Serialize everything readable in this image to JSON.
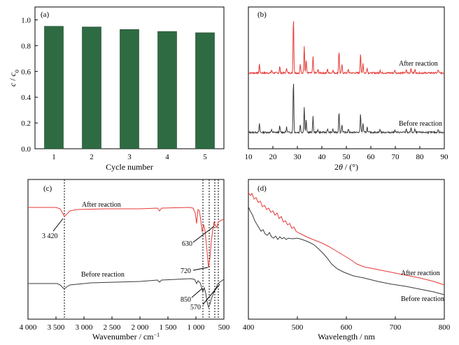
{
  "colors": {
    "after": "#e53935",
    "before": "#3a3a3a",
    "bar": "#2e6b42"
  },
  "chart_data": [
    {
      "panel": "(a)",
      "type": "bar",
      "categories": [
        "1",
        "2",
        "3",
        "4",
        "5"
      ],
      "values": [
        0.95,
        0.945,
        0.925,
        0.91,
        0.9
      ],
      "xlabel": "Cycle number",
      "ylabel_main": "c",
      "ylabel_sep": " / ",
      "ylabel_sub_base": "c",
      "ylabel_sub": "0",
      "ylim": [
        0,
        1.1
      ],
      "yticks": [
        0.0,
        0.2,
        0.4,
        0.6,
        0.8,
        1.0
      ]
    },
    {
      "panel": "(b)",
      "type": "line",
      "xlabel_pre": "2",
      "xlabel_theta": "θ",
      "xlabel_post": " / (°)",
      "xlim": [
        10,
        90
      ],
      "xticks": [
        10,
        20,
        30,
        40,
        50,
        60,
        70,
        80,
        90
      ],
      "peaks": [
        [
          14.5,
          0.16
        ],
        [
          19.5,
          0.05
        ],
        [
          22.8,
          0.12
        ],
        [
          25.6,
          0.1
        ],
        [
          28.4,
          1.0
        ],
        [
          31.2,
          0.16
        ],
        [
          32.8,
          0.5
        ],
        [
          33.6,
          0.24
        ],
        [
          36.4,
          0.3
        ],
        [
          38.4,
          0.06
        ],
        [
          42.3,
          0.07
        ],
        [
          44.5,
          0.06
        ],
        [
          47.0,
          0.4
        ],
        [
          48.2,
          0.15
        ],
        [
          50.8,
          0.07
        ],
        [
          55.8,
          0.36
        ],
        [
          56.8,
          0.18
        ],
        [
          58.5,
          0.1
        ],
        [
          63.8,
          0.06
        ],
        [
          69.8,
          0.05
        ],
        [
          74.5,
          0.06
        ],
        [
          76.4,
          0.09
        ],
        [
          78.0,
          0.06
        ],
        [
          87.5,
          0.06
        ]
      ],
      "series": [
        {
          "name": "After reaction",
          "color": "#e53935"
        },
        {
          "name": "Before reaction",
          "color": "#3a3a3a"
        }
      ]
    },
    {
      "panel": "(c)",
      "type": "line",
      "xlabel": "Wavenumber / cm",
      "xlabel_sup": "−1",
      "xlim": [
        4000,
        500
      ],
      "xticks": [
        4000,
        3500,
        3000,
        2500,
        2000,
        1500,
        1000,
        500
      ],
      "xtick_labels": [
        "4 000",
        "3 500",
        "3 000",
        "2 500",
        "2 000",
        "1 500",
        "1 000",
        "500"
      ],
      "annotations": [
        "3 420",
        "630",
        "720",
        "850",
        "570"
      ],
      "series": [
        {
          "name": "After reaction",
          "color": "#e53935"
        },
        {
          "name": "Before reaction",
          "color": "#3a3a3a"
        }
      ]
    },
    {
      "panel": "(d)",
      "type": "line",
      "xlabel": "Wavelength / nm",
      "xlim": [
        400,
        800
      ],
      "xticks": [
        400,
        500,
        600,
        700,
        800
      ],
      "series": [
        {
          "name": "After reaction",
          "color": "#e53935"
        },
        {
          "name": "Before reaction",
          "color": "#3a3a3a"
        }
      ]
    }
  ]
}
